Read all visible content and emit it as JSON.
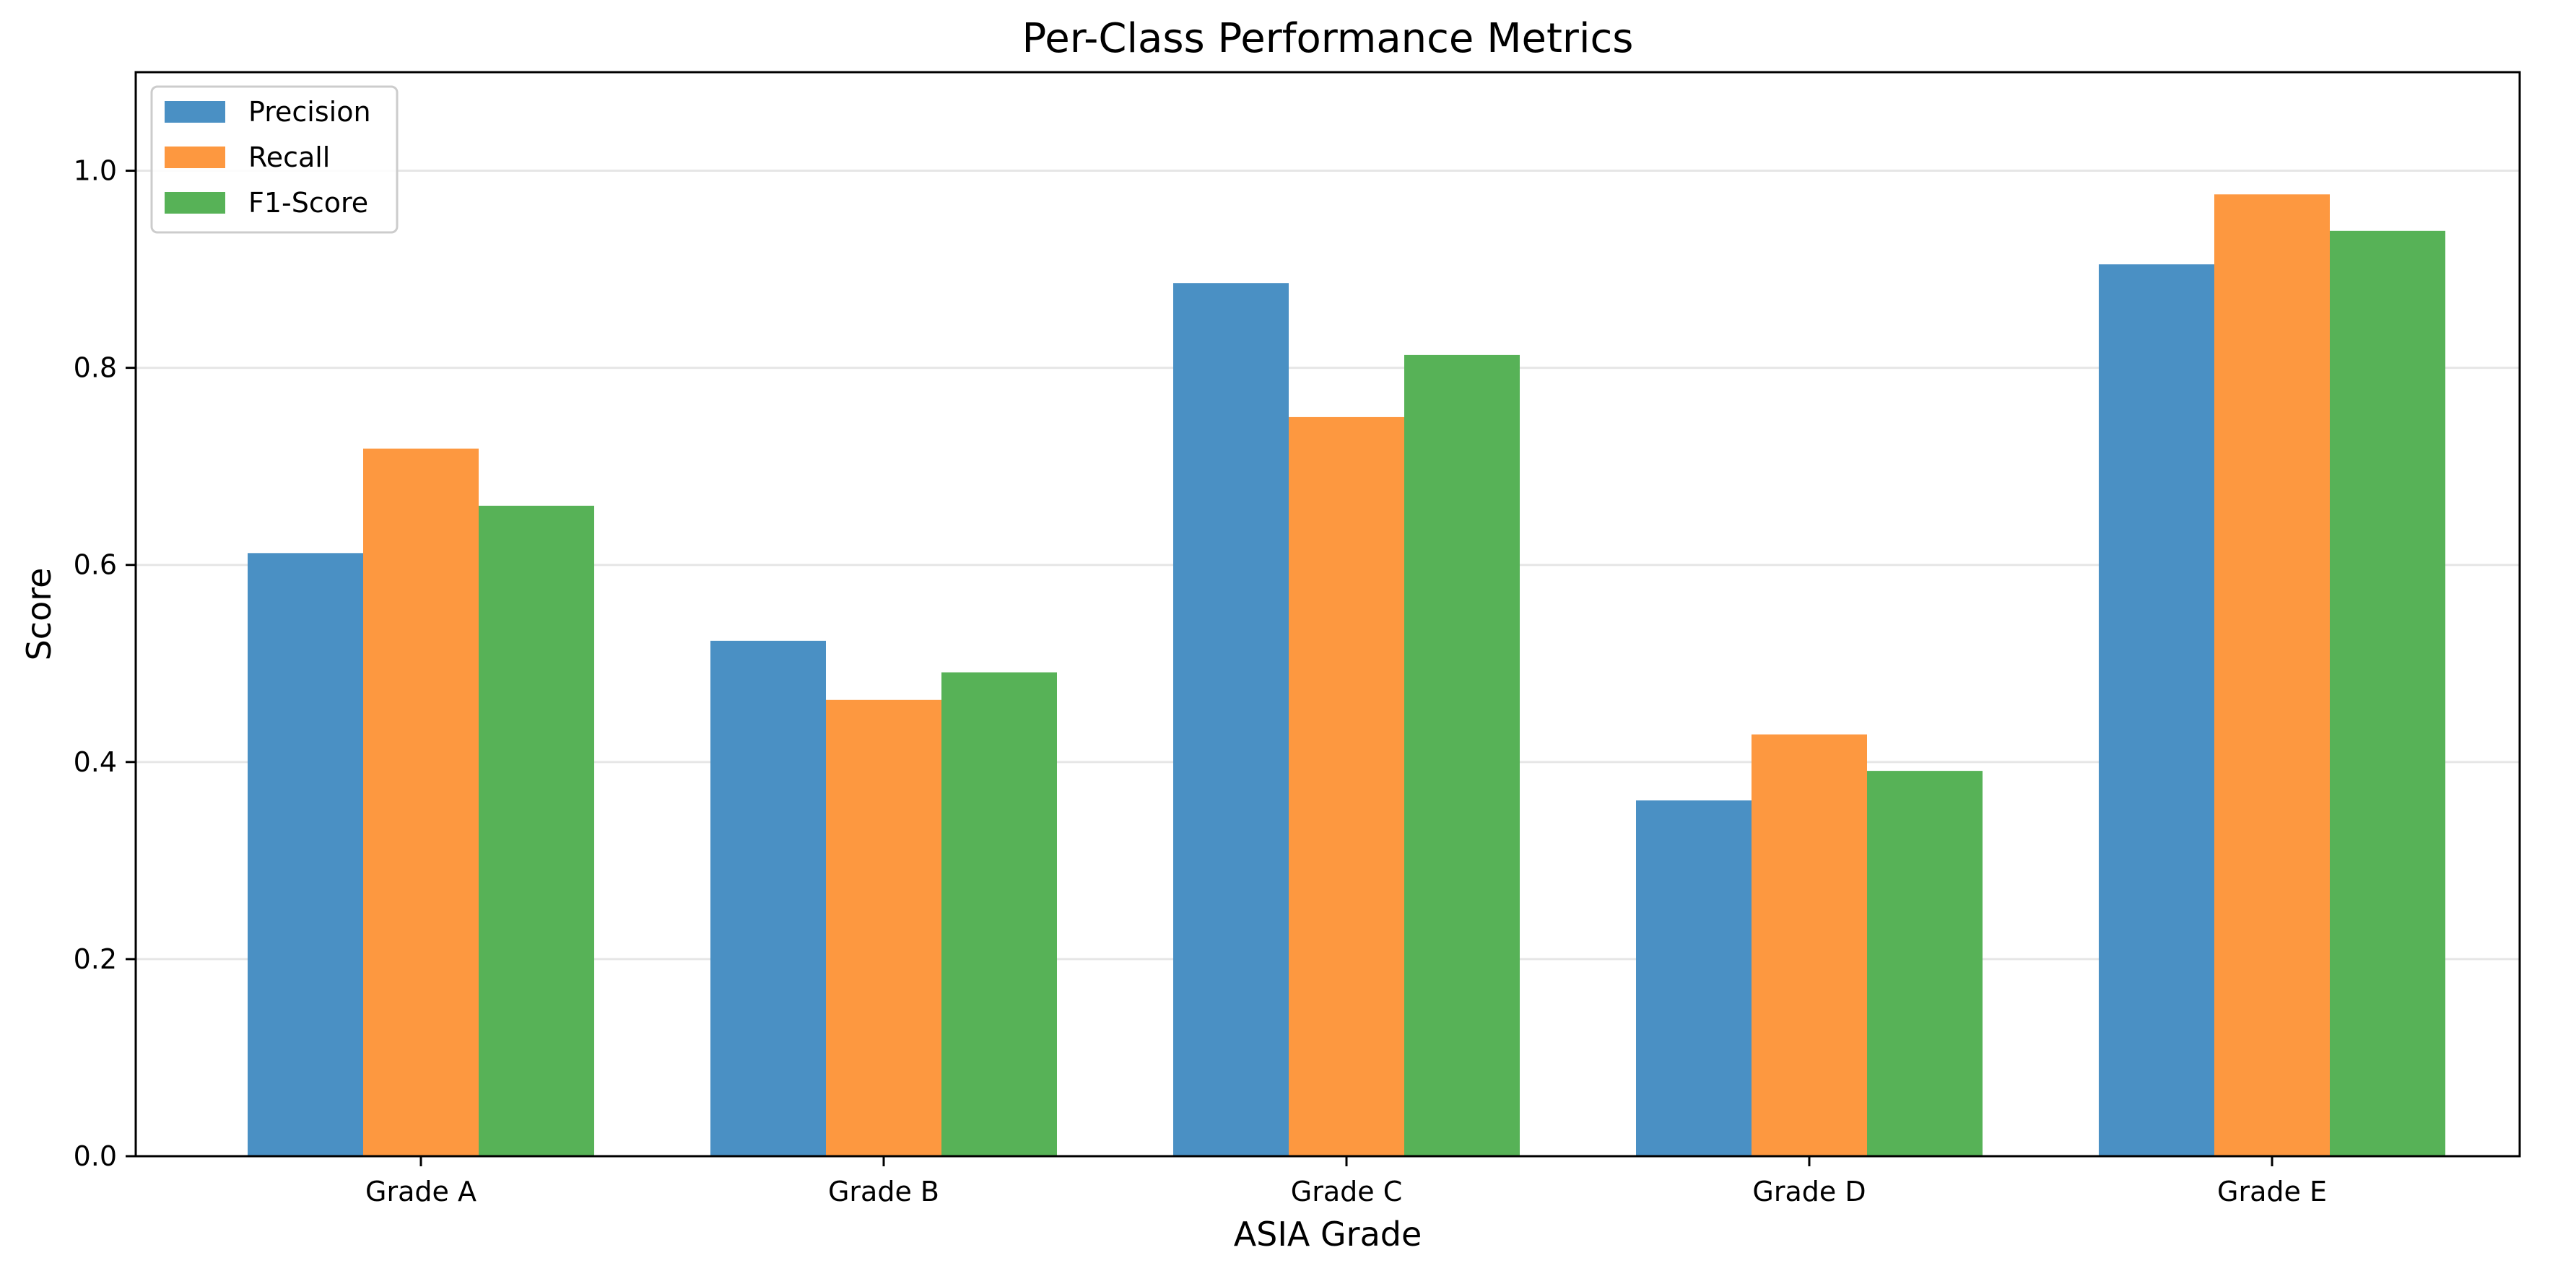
{
  "chart_data": {
    "type": "bar",
    "title": "Per-Class Performance Metrics",
    "xlabel": "ASIA Grade",
    "ylabel": "Score",
    "categories": [
      "Grade A",
      "Grade B",
      "Grade C",
      "Grade D",
      "Grade E"
    ],
    "ylim": [
      0,
      1.1
    ],
    "yticks": [
      0.0,
      0.2,
      0.4,
      0.6,
      0.8,
      1.0
    ],
    "ytick_labels": [
      "0.0",
      "0.2",
      "0.4",
      "0.6",
      "0.8",
      "1.0"
    ],
    "grid": "horizontal",
    "legend_position": "top-left",
    "series": [
      {
        "name": "Precision",
        "color": "#4a90c4",
        "values": [
          0.612,
          0.523,
          0.886,
          0.361,
          0.905
        ]
      },
      {
        "name": "Recall",
        "color": "#fd9840",
        "values": [
          0.718,
          0.463,
          0.75,
          0.428,
          0.976
        ]
      },
      {
        "name": "F1-Score",
        "color": "#57b257",
        "values": [
          0.66,
          0.491,
          0.813,
          0.391,
          0.939
        ]
      }
    ]
  }
}
